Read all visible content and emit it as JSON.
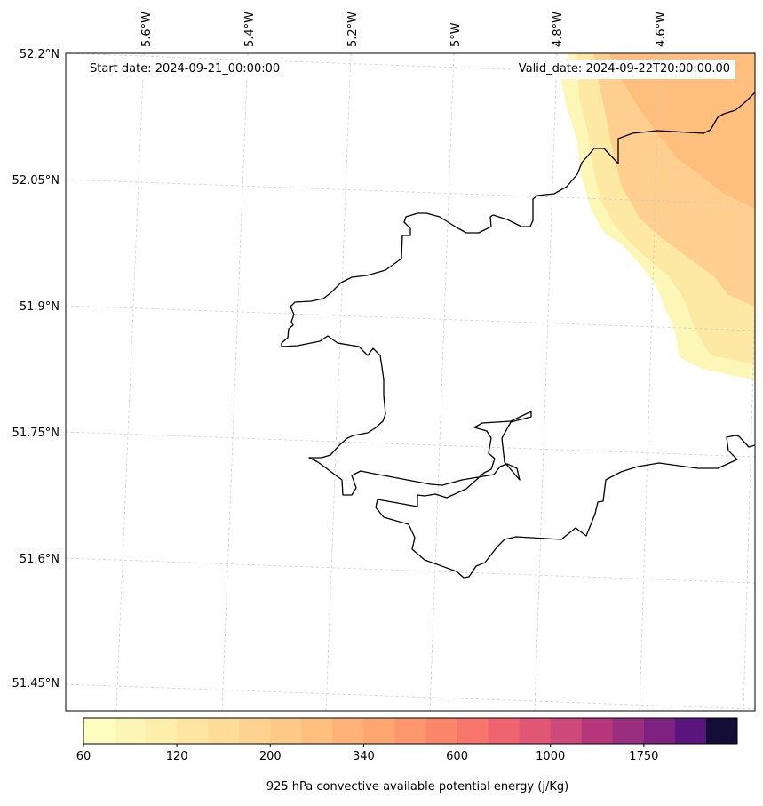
{
  "map": {
    "start_date_label": "Start date: 2024-09-21_00:00:00",
    "valid_date_label": "Valid_date: 2024-09-22T20:00:00.00",
    "lon_labels": [
      "5.6°W",
      "5.4°W",
      "5.2°W",
      "5°W",
      "4.8°W",
      "4.6°W"
    ],
    "lat_labels": [
      "52.2°N",
      "52.05°N",
      "51.9°N",
      "51.75°N",
      "51.6°N",
      "51.45°N"
    ],
    "coastline_color": "#000000",
    "gridline_color": "#cccccc"
  },
  "colorbar": {
    "label": "925 hPa convective available potential energy (j/Kg)",
    "tick_labels": [
      "60",
      "120",
      "200",
      "340",
      "600",
      "1000",
      "1750"
    ],
    "colors": [
      "#fcfdbf",
      "#fcf5b5",
      "#fdeeab",
      "#fde6a2",
      "#fddd98",
      "#fed38f",
      "#fec886",
      "#febe7e",
      "#feb277",
      "#fea570",
      "#fd966c",
      "#fb866a",
      "#f7756b",
      "#ef636f",
      "#e15575",
      "#ce4a7a",
      "#b5367a",
      "#9c2e7f",
      "#7d2281",
      "#5a167e",
      "#140e36"
    ]
  }
}
